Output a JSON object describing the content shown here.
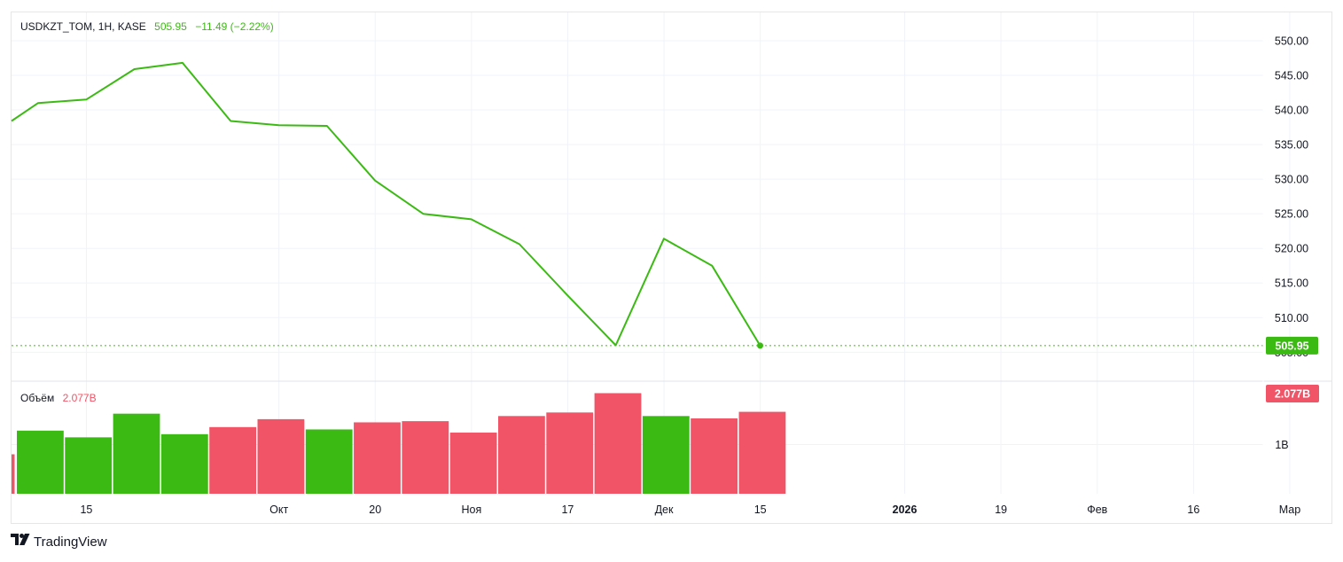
{
  "legend": {
    "symbol": "USDKZT_TOM, 1H, KASE",
    "last": "505.95",
    "change": "−11.49 (−2.22%)",
    "volume_label": "Объём",
    "volume_value": "2.077B"
  },
  "last_price_tag": "505.95",
  "volume_tag": "2.077B",
  "branding": {
    "name": "TradingView",
    "mark": "TV"
  },
  "colors": {
    "up": "#3cba14",
    "down": "#f05466",
    "line": "#3cba14",
    "grid": "#f0f3fa",
    "tag_green": "#3cba14",
    "tag_red": "#f05466"
  },
  "chart_data": {
    "type": "line",
    "title": "USDKZT_TOM, 1H, KASE",
    "y_ticks": [
      "550.00",
      "545.00",
      "540.00",
      "535.00",
      "530.00",
      "525.00",
      "520.00",
      "515.00",
      "510.00",
      "505.00"
    ],
    "ylim": [
      504.4,
      552.3
    ],
    "x_ticks": [
      "15",
      "Окт",
      "20",
      "Ноя",
      "17",
      "Дек",
      "15",
      "2026",
      "19",
      "Фев",
      "16",
      "Мар"
    ],
    "bold_x_ticks": [
      "2026"
    ],
    "x_index_ticks": [
      1.5,
      5.5,
      7.5,
      9.5,
      11.5,
      13.5,
      15.5,
      18.5,
      20.5,
      22.5,
      24.5,
      26.5
    ],
    "series": [
      {
        "values": [
          538.4,
          541.0,
          541.5,
          545.9,
          546.8,
          538.4,
          537.8,
          537.7,
          529.8,
          525.0,
          524.2,
          520.6,
          513.2,
          506.0,
          521.4,
          517.5,
          505.95
        ]
      }
    ],
    "volume": {
      "label": "Объём",
      "y_ticks": [
        "1B"
      ],
      "bars": [
        {
          "value": 1.0,
          "up": false
        },
        {
          "value": 1.6,
          "up": true
        },
        {
          "value": 1.43,
          "up": true
        },
        {
          "value": 2.03,
          "up": true
        },
        {
          "value": 1.51,
          "up": true
        },
        {
          "value": 1.69,
          "up": false
        },
        {
          "value": 1.89,
          "up": false
        },
        {
          "value": 1.63,
          "up": true
        },
        {
          "value": 1.81,
          "up": false
        },
        {
          "value": 1.84,
          "up": false
        },
        {
          "value": 1.55,
          "up": false
        },
        {
          "value": 1.97,
          "up": false
        },
        {
          "value": 2.06,
          "up": false
        },
        {
          "value": 2.55,
          "up": false
        },
        {
          "value": 1.97,
          "up": true
        },
        {
          "value": 1.91,
          "up": false
        },
        {
          "value": 2.077,
          "up": false
        }
      ]
    }
  }
}
